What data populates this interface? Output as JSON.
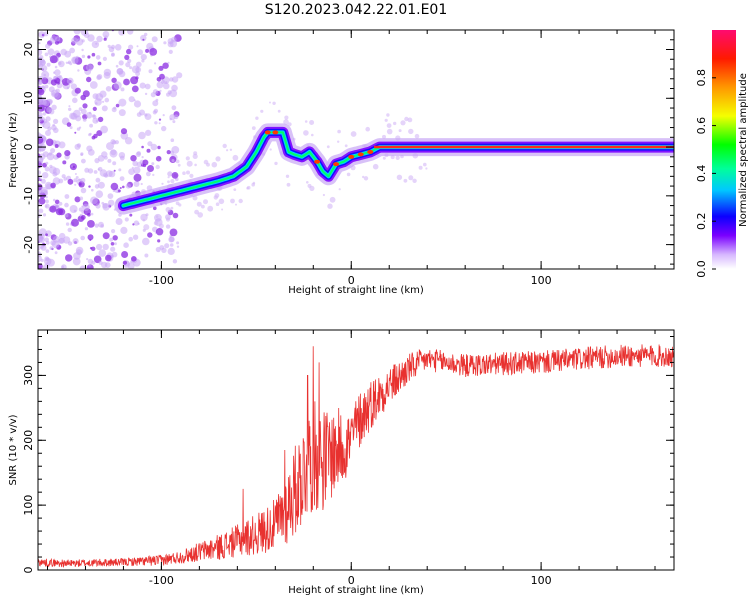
{
  "title": "S120.2023.042.22.01.E01",
  "chart_data": [
    {
      "type": "heatmap",
      "xlabel": "Height of straight line (km)",
      "ylabel": "Frequency (Hz)",
      "xlim": [
        -165,
        170
      ],
      "ylim": [
        -25,
        24
      ],
      "xticks": [
        -100,
        0,
        100
      ],
      "yticks": [
        -20,
        -10,
        0,
        10,
        20
      ],
      "ridge_x": [
        -120,
        -110,
        -100,
        -90,
        -80,
        -70,
        -62,
        -55,
        -50,
        -46,
        -44,
        -40,
        -36,
        -33,
        -30,
        -26,
        -22,
        -18,
        -15,
        -12,
        -8,
        -4,
        0,
        5,
        10,
        15,
        20,
        25,
        40,
        60,
        80,
        100,
        120,
        140,
        160,
        170
      ],
      "ridge_y": [
        -12,
        -11,
        -10,
        -9,
        -8,
        -7,
        -6,
        -4,
        -1,
        2,
        3,
        3,
        3,
        -1,
        -1.5,
        -2,
        -1,
        -3,
        -5,
        -6,
        -3.5,
        -3,
        -2,
        -1.5,
        -1,
        0,
        0,
        0,
        0,
        0,
        0,
        0,
        0,
        0,
        0,
        0
      ],
      "colorbar": {
        "label": "Normalized spectral amplitude",
        "range": [
          0.0,
          1.0
        ],
        "ticks": [
          "0.0",
          "0.2",
          "0.4",
          "0.6",
          "0.8"
        ]
      }
    },
    {
      "type": "line",
      "xlabel": "Height of straight line (km)",
      "ylabel": "SNR (10 * v/v)",
      "xlim": [
        -165,
        170
      ],
      "ylim": [
        0,
        370
      ],
      "xticks": [
        -100,
        0,
        100
      ],
      "yticks": [
        0,
        100,
        200,
        300
      ],
      "color": "#e8312f",
      "envelope_x": [
        -165,
        -150,
        -120,
        -100,
        -90,
        -80,
        -70,
        -60,
        -50,
        -40,
        -35,
        -30,
        -25,
        -20,
        -15,
        -10,
        -5,
        0,
        5,
        10,
        15,
        20,
        25,
        30,
        40,
        50,
        60,
        80,
        100,
        120,
        140,
        160,
        170
      ],
      "envelope_y": [
        12,
        10,
        12,
        15,
        20,
        28,
        35,
        45,
        55,
        70,
        90,
        120,
        150,
        180,
        170,
        180,
        190,
        200,
        235,
        255,
        270,
        285,
        295,
        310,
        325,
        320,
        315,
        318,
        320,
        325,
        330,
        330,
        330
      ],
      "noise_x": [
        -165,
        -120,
        -90,
        -60,
        -40,
        -30,
        -20,
        -10,
        0,
        20,
        40,
        170
      ],
      "noise_amp": [
        6,
        6,
        10,
        25,
        40,
        70,
        90,
        70,
        50,
        30,
        18,
        18
      ],
      "spikes": [
        {
          "x": -57,
          "y": 125
        },
        {
          "x": -35,
          "y": 185
        },
        {
          "x": -23,
          "y": 300
        },
        {
          "x": -20,
          "y": 345
        },
        {
          "x": -17,
          "y": 320
        },
        {
          "x": 2,
          "y": 250
        }
      ]
    }
  ]
}
